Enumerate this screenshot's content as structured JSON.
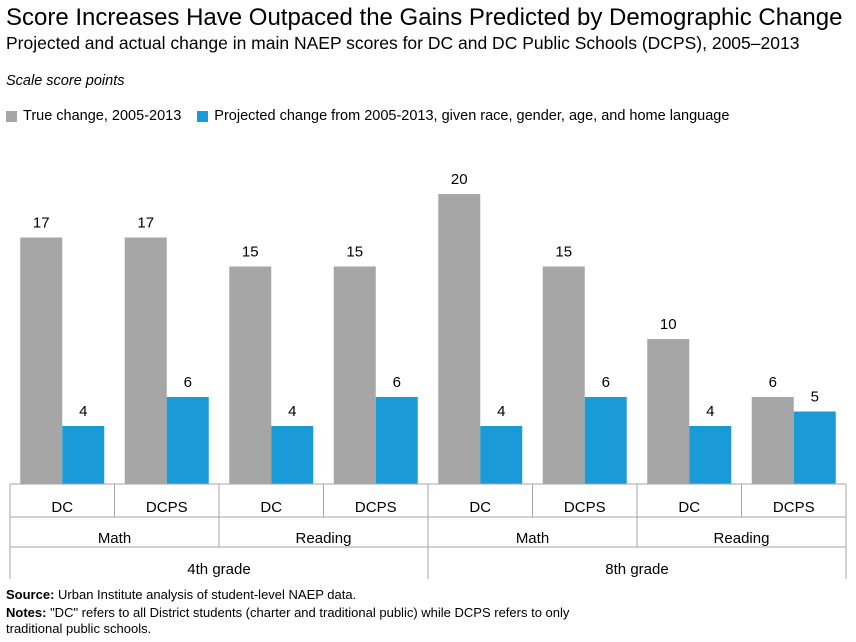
{
  "title": "Score Increases Have Outpaced the Gains Predicted by Demographic Change",
  "subtitle": "Projected and actual change in main NAEP scores for DC and DC Public Schools (DCPS), 2005–2013",
  "colors": {
    "true_change": "#a6a6a6",
    "projected_change": "#1a9ad6",
    "axis": "#a6a6a6"
  },
  "chart_data": {
    "type": "bar",
    "ylabel": "Scale score points",
    "ylim": [
      0,
      20
    ],
    "grid": false,
    "legend_position": "top-left",
    "categories": [
      "DC",
      "DCPS",
      "DC",
      "DCPS",
      "DC",
      "DCPS",
      "DC",
      "DCPS"
    ],
    "subject_groups": [
      "Math",
      "Reading",
      "Math",
      "Reading"
    ],
    "grade_groups": [
      "4th grade",
      "8th grade"
    ],
    "series": [
      {
        "name": "True change, 2005-2013",
        "values": [
          17,
          17,
          15,
          15,
          20,
          15,
          10,
          6
        ]
      },
      {
        "name": "Projected change from 2005-2013, given race, gender, age, and home language",
        "values": [
          4,
          6,
          4,
          6,
          4,
          6,
          4,
          5
        ]
      }
    ]
  },
  "footer": {
    "source_label": "Source:",
    "source_text": " Urban Institute analysis of student-level NAEP data.",
    "notes_label": "Notes:",
    "notes_text": " \"DC\" refers to all District students (charter and traditional public) while DCPS refers to only traditional public schools."
  }
}
